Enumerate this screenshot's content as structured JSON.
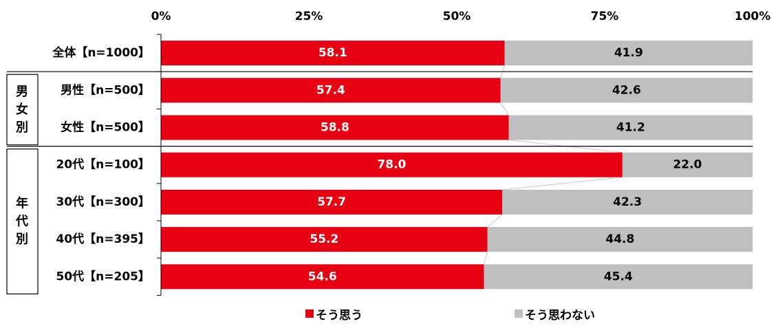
{
  "chart_data": {
    "type": "bar",
    "stacked": true,
    "orientation": "horizontal",
    "percent_scale": true,
    "xlim": [
      0,
      100
    ],
    "x_ticks": [
      "0%",
      "25%",
      "50%",
      "75%",
      "100%"
    ],
    "x_tick_values": [
      0,
      25,
      50,
      75,
      100
    ],
    "categories": [
      "全体【n=1000】",
      "男性【n=500】",
      "女性【n=500】",
      "20代【n=100】",
      "30代【n=300】",
      "40代【n=395】",
      "50代【n=205】"
    ],
    "series": [
      {
        "name": "そう思う",
        "color": "#e60012",
        "values": [
          58.1,
          57.4,
          58.8,
          78.0,
          57.7,
          55.2,
          54.6
        ]
      },
      {
        "name": "そう思わない",
        "color": "#bfbfbf",
        "values": [
          41.9,
          42.6,
          41.2,
          22.0,
          42.3,
          44.8,
          45.4
        ]
      }
    ],
    "data_labels": [
      [
        "58.1",
        "57.4",
        "58.8",
        "78.0",
        "57.7",
        "55.2",
        "54.6"
      ],
      [
        "41.9",
        "42.6",
        "41.2",
        "22.0",
        "42.3",
        "44.8",
        "45.4"
      ]
    ],
    "groups": [
      {
        "label": "男\n女\n別",
        "chars": [
          "男",
          "女",
          "別"
        ],
        "categories": [
          1,
          2
        ]
      },
      {
        "label": "年\n代\n別",
        "chars": [
          "年",
          "代",
          "別"
        ],
        "categories": [
          3,
          4,
          5,
          6
        ]
      }
    ],
    "legend_position": "bottom",
    "grid": false
  }
}
